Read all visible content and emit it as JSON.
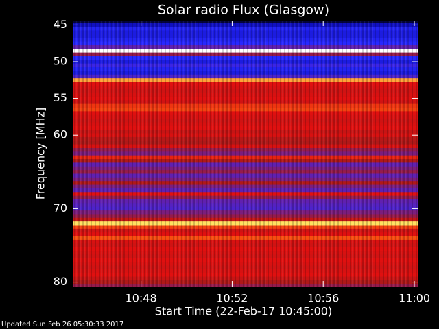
{
  "chart_data": {
    "type": "spectrogram",
    "title": "Solar radio Flux (Glasgow)",
    "x_label": "Start Time (22-Feb-17 10:45:00)",
    "y_label": "Frequency [MHz]",
    "footer": "Updated Sun Feb 26 05:30:33 2017",
    "xlim": [
      645,
      660.15
    ],
    "xticks": [
      {
        "value": 648,
        "label": "10:48"
      },
      {
        "value": 652,
        "label": "10:52"
      },
      {
        "value": 656,
        "label": "10:56"
      },
      {
        "value": 660,
        "label": "11:00"
      }
    ],
    "ylim": [
      44.4,
      80.6
    ],
    "y_reversed": true,
    "yticks": [
      45,
      50,
      55,
      60,
      70,
      80
    ],
    "colormap": [
      [
        0,
        "#000010"
      ],
      [
        0.2,
        "#1010c0"
      ],
      [
        0.3,
        "#2828ff"
      ],
      [
        0.45,
        "#6020b0"
      ],
      [
        0.6,
        "#b01818"
      ],
      [
        0.72,
        "#e01010"
      ],
      [
        0.85,
        "#ff6010"
      ],
      [
        0.95,
        "#ffe060"
      ],
      [
        1,
        "#ffffff"
      ]
    ],
    "frequencies": [
      44.5,
      45,
      45.5,
      46,
      46.5,
      47,
      47.5,
      48,
      48.5,
      49,
      49.5,
      50,
      50.5,
      51,
      51.5,
      52,
      52.5,
      53,
      53.5,
      54,
      54.5,
      55,
      55.5,
      56,
      56.5,
      57,
      57.5,
      58,
      58.5,
      59,
      59.5,
      60,
      60.5,
      61,
      61.5,
      62,
      62.5,
      63,
      63.5,
      64,
      64.5,
      65,
      65.5,
      66,
      66.5,
      67,
      67.5,
      68,
      68.5,
      69,
      69.5,
      70,
      70.5,
      71,
      71.5,
      72,
      72.5,
      73,
      73.5,
      74,
      74.5,
      75,
      75.5,
      76,
      76.5,
      77,
      77.5,
      78,
      78.5,
      79,
      79.5,
      80,
      80.5
    ],
    "intensity": [
      0.05,
      0.2,
      0.28,
      0.25,
      0.25,
      0.28,
      0.3,
      0.45,
      1.0,
      0.55,
      0.3,
      0.25,
      0.35,
      0.28,
      0.25,
      0.4,
      0.9,
      0.72,
      0.7,
      0.68,
      0.7,
      0.72,
      0.68,
      0.78,
      0.8,
      0.72,
      0.7,
      0.68,
      0.7,
      0.72,
      0.66,
      0.7,
      0.62,
      0.6,
      0.7,
      0.55,
      0.5,
      0.75,
      0.6,
      0.45,
      0.5,
      0.55,
      0.45,
      0.5,
      0.6,
      0.5,
      0.45,
      0.72,
      0.55,
      0.45,
      0.42,
      0.4,
      0.5,
      0.55,
      0.65,
      0.95,
      0.8,
      0.68,
      0.72,
      0.82,
      0.7,
      0.68,
      0.72,
      0.7,
      0.68,
      0.72,
      0.7,
      0.68,
      0.7,
      0.72,
      0.66,
      0.6,
      0.55
    ]
  }
}
